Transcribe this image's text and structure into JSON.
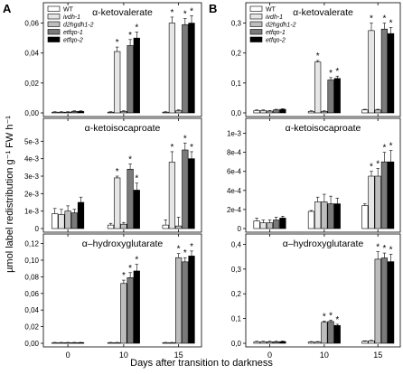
{
  "figure": {
    "ylabel": "µmol label redistribution g⁻¹ FW h⁻¹",
    "xlabel": "Days after transition to darkness",
    "panel_a_letter": "A",
    "panel_b_letter": "B"
  },
  "legend": [
    {
      "name": "WT",
      "color": "#ffffff"
    },
    {
      "name": "ivdh-1",
      "color": "#e6e6e6"
    },
    {
      "name": "d2hgdh1-2",
      "color": "#bdbdbd"
    },
    {
      "name": "etfqo-1",
      "color": "#7a7a7a"
    },
    {
      "name": "etfqo-2",
      "color": "#000000"
    }
  ],
  "chart_data": [
    {
      "type": "bar",
      "panel": "A",
      "title": "α-ketovalerate",
      "categories": [
        "0",
        "10",
        "15"
      ],
      "ylim": [
        0,
        0.07
      ],
      "yticks": [
        0,
        0.02,
        0.04,
        0.06
      ],
      "yticklabels": [
        "0,00",
        "0,02",
        "0,04",
        "0,06"
      ],
      "series": [
        {
          "name": "WT",
          "values": [
            0.0005,
            0.0005,
            0.0005
          ],
          "errors": [
            0.0003,
            0.0003,
            0.0003
          ]
        },
        {
          "name": "ivdh-1",
          "values": [
            0.0005,
            0.041,
            0.06
          ],
          "errors": [
            0.0003,
            0.003,
            0.004
          ]
        },
        {
          "name": "d2hgdh1-2",
          "values": [
            0.0005,
            0.001,
            0.0015
          ],
          "errors": [
            0.0003,
            0.0005,
            0.0005
          ]
        },
        {
          "name": "etfqo-1",
          "values": [
            0.001,
            0.045,
            0.059
          ],
          "errors": [
            0.0004,
            0.004,
            0.004
          ]
        },
        {
          "name": "etfqo-2",
          "values": [
            0.001,
            0.05,
            0.06
          ],
          "errors": [
            0.0004,
            0.004,
            0.005
          ]
        }
      ],
      "significance": [
        [
          false,
          false,
          false
        ],
        [
          false,
          true,
          true
        ],
        [
          false,
          false,
          false
        ],
        [
          false,
          true,
          true
        ],
        [
          false,
          true,
          true
        ]
      ]
    },
    {
      "type": "bar",
      "panel": "B",
      "title": "α-ketovalerate",
      "categories": [
        "0",
        "10",
        "15"
      ],
      "ylim": [
        0,
        0.35
      ],
      "yticks": [
        0,
        0.1,
        0.2,
        0.3
      ],
      "yticklabels": [
        "0,0",
        "0,1",
        "0,2",
        "0,3"
      ],
      "series": [
        {
          "name": "WT",
          "values": [
            0.008,
            0.005,
            0.01
          ],
          "errors": [
            0.002,
            0.002,
            0.002
          ]
        },
        {
          "name": "ivdh-1",
          "values": [
            0.008,
            0.17,
            0.275
          ],
          "errors": [
            0.002,
            0.005,
            0.025
          ]
        },
        {
          "name": "d2hgdh1-2",
          "values": [
            0.006,
            0.005,
            0.01
          ],
          "errors": [
            0.002,
            0.002,
            0.002
          ]
        },
        {
          "name": "etfqo-1",
          "values": [
            0.01,
            0.11,
            0.28
          ],
          "errors": [
            0.002,
            0.008,
            0.02
          ]
        },
        {
          "name": "etfqo-2",
          "values": [
            0.012,
            0.115,
            0.265
          ],
          "errors": [
            0.002,
            0.008,
            0.02
          ]
        }
      ],
      "significance": [
        [
          false,
          false,
          false
        ],
        [
          false,
          true,
          true
        ],
        [
          false,
          false,
          false
        ],
        [
          false,
          true,
          true
        ],
        [
          false,
          true,
          true
        ]
      ]
    },
    {
      "type": "bar",
      "panel": "A",
      "title": "α-ketoisocaproate",
      "categories": [
        "0",
        "10",
        "15"
      ],
      "ylim": [
        0,
        0.006
      ],
      "yticks": [
        0,
        0.001,
        0.002,
        0.003,
        0.004,
        0.005
      ],
      "yticklabels": [
        "0",
        "1e-3",
        "2e-3",
        "3e-3",
        "4e-3",
        "5e-3"
      ],
      "series": [
        {
          "name": "WT",
          "values": [
            0.00085,
            0.0002,
            0.0002
          ],
          "errors": [
            0.0003,
            0.0001,
            0.0003
          ]
        },
        {
          "name": "ivdh-1",
          "values": [
            0.0008,
            0.0029,
            0.0038
          ],
          "errors": [
            0.0003,
            0.0001,
            0.0006
          ]
        },
        {
          "name": "d2hgdh1-2",
          "values": [
            0.001,
            0.00025,
            0.00015
          ],
          "errors": [
            0.0003,
            0.0001,
            0.0005
          ]
        },
        {
          "name": "etfqo-1",
          "values": [
            0.0009,
            0.0034,
            0.0045
          ],
          "errors": [
            0.0002,
            0.0003,
            0.0004
          ]
        },
        {
          "name": "etfqo-2",
          "values": [
            0.0015,
            0.0022,
            0.004
          ],
          "errors": [
            0.0003,
            0.0004,
            0.0004
          ]
        }
      ],
      "significance": [
        [
          false,
          false,
          false
        ],
        [
          false,
          true,
          true
        ],
        [
          false,
          false,
          false
        ],
        [
          false,
          true,
          true
        ],
        [
          false,
          true,
          true
        ]
      ]
    },
    {
      "type": "bar",
      "panel": "B",
      "title": "α-ketoisocaproate",
      "categories": [
        "0",
        "10",
        "15"
      ],
      "ylim": [
        0,
        0.0011
      ],
      "yticks": [
        0,
        0.0002,
        0.0004,
        0.0006,
        0.0008,
        0.001
      ],
      "yticklabels": [
        "0",
        "2e-4",
        "4e-4",
        "6e-4",
        "8e-4",
        "1e-3"
      ],
      "series": [
        {
          "name": "WT",
          "values": [
            8e-05,
            0.00018,
            0.00024
          ],
          "errors": [
            3e-05,
            1e-05,
            2e-05
          ]
        },
        {
          "name": "ivdh-1",
          "values": [
            6e-05,
            0.00028,
            0.00055
          ],
          "errors": [
            3e-05,
            5e-05,
            5e-05
          ]
        },
        {
          "name": "d2hgdh1-2",
          "values": [
            6e-05,
            0.00028,
            0.00055
          ],
          "errors": [
            3e-05,
            8e-05,
            8e-05
          ]
        },
        {
          "name": "etfqo-1",
          "values": [
            9e-05,
            0.00026,
            0.0007
          ],
          "errors": [
            3e-05,
            8e-05,
            0.0001
          ]
        },
        {
          "name": "etfqo-2",
          "values": [
            0.00011,
            0.00026,
            0.0007
          ],
          "errors": [
            2e-05,
            6e-05,
            0.00012
          ]
        }
      ],
      "significance": [
        [
          false,
          false,
          false
        ],
        [
          false,
          false,
          true
        ],
        [
          false,
          false,
          true
        ],
        [
          false,
          false,
          true
        ],
        [
          false,
          false,
          true
        ]
      ]
    },
    {
      "type": "bar",
      "panel": "A",
      "title": "α–hydroxyglutarate",
      "categories": [
        "0",
        "10",
        "15"
      ],
      "ylim": [
        0,
        0.125
      ],
      "yticks": [
        0,
        0.02,
        0.04,
        0.06,
        0.08,
        0.1,
        0.12
      ],
      "yticklabels": [
        "0,00",
        "0,02",
        "0,04",
        "0,06",
        "0,08",
        "0,10",
        "0,12"
      ],
      "series": [
        {
          "name": "WT",
          "values": [
            0.0008,
            0.0008,
            0.0008
          ],
          "errors": [
            0.0003,
            0.0003,
            0.0003
          ]
        },
        {
          "name": "ivdh-1",
          "values": [
            0.0008,
            0.0008,
            0.0008
          ],
          "errors": [
            0.0003,
            0.0003,
            0.0003
          ]
        },
        {
          "name": "d2hgdh1-2",
          "values": [
            0.0008,
            0.072,
            0.103
          ],
          "errors": [
            0.0003,
            0.004,
            0.005
          ]
        },
        {
          "name": "etfqo-1",
          "values": [
            0.0008,
            0.079,
            0.098
          ],
          "errors": [
            0.0003,
            0.006,
            0.005
          ]
        },
        {
          "name": "etfqo-2",
          "values": [
            0.0008,
            0.087,
            0.105
          ],
          "errors": [
            0.0003,
            0.008,
            0.006
          ]
        }
      ],
      "significance": [
        [
          false,
          false,
          false
        ],
        [
          false,
          false,
          false
        ],
        [
          false,
          true,
          true
        ],
        [
          false,
          true,
          true
        ],
        [
          false,
          true,
          true
        ]
      ]
    },
    {
      "type": "bar",
      "panel": "B",
      "title": "α–hydroxyglutarate",
      "categories": [
        "0",
        "10",
        "15"
      ],
      "ylim": [
        0,
        0.42
      ],
      "yticks": [
        0,
        0.1,
        0.2,
        0.3,
        0.4
      ],
      "yticklabels": [
        "0,0",
        "0,1",
        "0,2",
        "0,3",
        "0,4"
      ],
      "series": [
        {
          "name": "WT",
          "values": [
            0.006,
            0.005,
            0.008
          ],
          "errors": [
            0.002,
            0.002,
            0.002
          ]
        },
        {
          "name": "ivdh-1",
          "values": [
            0.006,
            0.005,
            0.01
          ],
          "errors": [
            0.002,
            0.002,
            0.002
          ]
        },
        {
          "name": "d2hgdh1-2",
          "values": [
            0.006,
            0.085,
            0.34
          ],
          "errors": [
            0.002,
            0.005,
            0.03
          ]
        },
        {
          "name": "etfqo-1",
          "values": [
            0.006,
            0.088,
            0.345
          ],
          "errors": [
            0.002,
            0.006,
            0.02
          ]
        },
        {
          "name": "etfqo-2",
          "values": [
            0.007,
            0.072,
            0.33
          ],
          "errors": [
            0.002,
            0.005,
            0.03
          ]
        }
      ],
      "significance": [
        [
          false,
          false,
          false
        ],
        [
          false,
          false,
          false
        ],
        [
          false,
          true,
          true
        ],
        [
          false,
          true,
          true
        ],
        [
          false,
          true,
          true
        ]
      ]
    }
  ]
}
